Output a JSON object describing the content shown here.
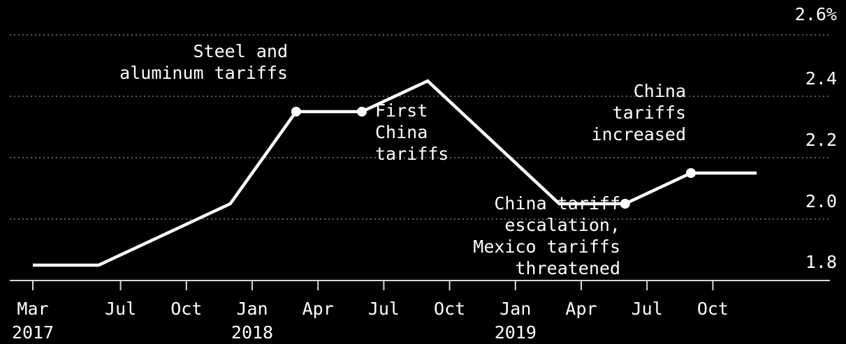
{
  "chart_data": {
    "type": "line",
    "y_unit_label": "2.6%",
    "ylim": [
      1.8,
      2.6
    ],
    "yticks": [
      {
        "value": 2.6,
        "label": "2.6%"
      },
      {
        "value": 2.4,
        "label": "2.4"
      },
      {
        "value": 2.2,
        "label": "2.2"
      },
      {
        "value": 2.0,
        "label": "2.0"
      },
      {
        "value": 1.8,
        "label": "1.8"
      }
    ],
    "xticks": [
      {
        "month": 0,
        "label": "Mar",
        "year_label": "2017"
      },
      {
        "month": 4,
        "label": "Jul",
        "year_label": ""
      },
      {
        "month": 7,
        "label": "Oct",
        "year_label": ""
      },
      {
        "month": 10,
        "label": "Jan",
        "year_label": "2018"
      },
      {
        "month": 13,
        "label": "Apr",
        "year_label": ""
      },
      {
        "month": 16,
        "label": "Jul",
        "year_label": ""
      },
      {
        "month": 19,
        "label": "Oct",
        "year_label": ""
      },
      {
        "month": 22,
        "label": "Jan",
        "year_label": "2019"
      },
      {
        "month": 25,
        "label": "Apr",
        "year_label": ""
      },
      {
        "month": 28,
        "label": "Jul",
        "year_label": ""
      },
      {
        "month": 31,
        "label": "Oct",
        "year_label": ""
      }
    ],
    "series": [
      {
        "points": [
          {
            "date": "2017-03",
            "value": 1.85
          },
          {
            "date": "2017-06",
            "value": 1.85
          },
          {
            "date": "2017-09",
            "value": 1.95
          },
          {
            "date": "2017-12",
            "value": 2.05
          },
          {
            "date": "2018-03",
            "value": 2.35,
            "marker": true
          },
          {
            "date": "2018-06",
            "value": 2.35,
            "marker": true
          },
          {
            "date": "2018-09",
            "value": 2.45
          },
          {
            "date": "2018-12",
            "value": 2.25
          },
          {
            "date": "2019-03",
            "value": 2.05
          },
          {
            "date": "2019-06",
            "value": 2.05,
            "marker": true
          },
          {
            "date": "2019-09",
            "value": 2.15,
            "marker": true
          },
          {
            "date": "2019-12",
            "value": 2.15
          }
        ]
      }
    ],
    "annotations": [
      {
        "lines": [
          "Steel and",
          "aluminum tariffs"
        ],
        "anchor": "end",
        "date": "2018-03"
      },
      {
        "lines": [
          "First",
          "China",
          "tariffs"
        ],
        "anchor": "start",
        "date": "2018-06"
      },
      {
        "lines": [
          "China tariff",
          "escalation,",
          "Mexico tariffs",
          "threatened"
        ],
        "anchor": "end",
        "date": "2019-06"
      },
      {
        "lines": [
          "China",
          "tariffs",
          "increased"
        ],
        "anchor": "end",
        "date": "2019-09"
      }
    ]
  }
}
